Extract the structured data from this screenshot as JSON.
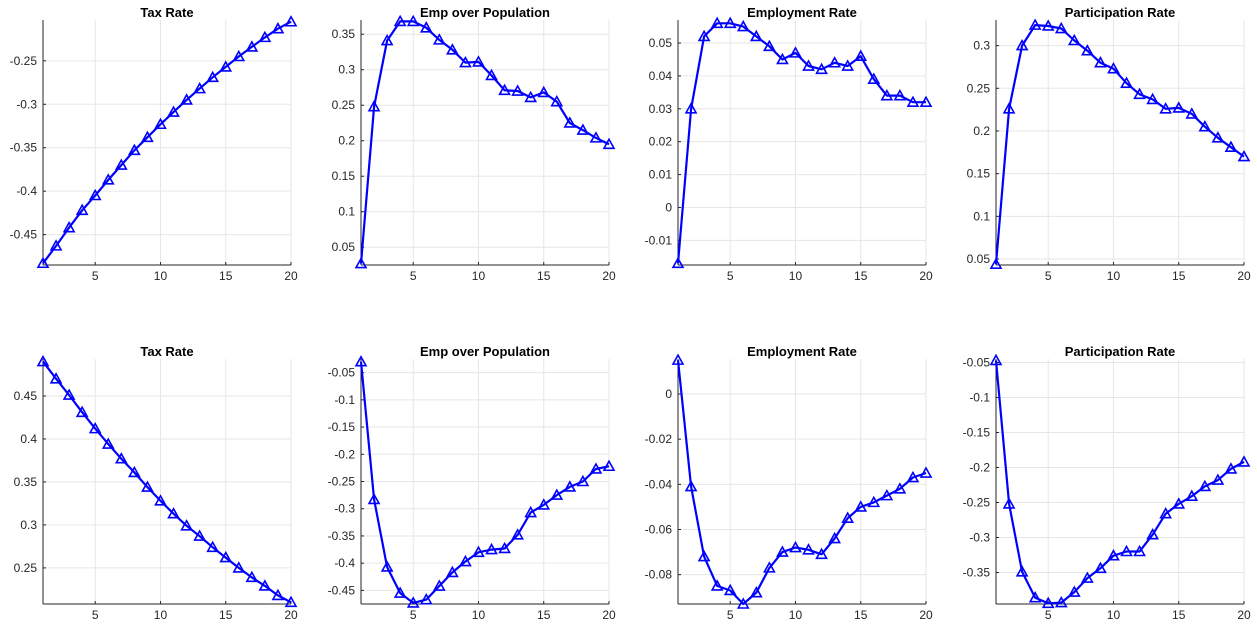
{
  "colors": {
    "line": "#0000ff",
    "grid": "#e6e6e6",
    "axis": "#262626",
    "tick_text": "#262626",
    "title": "#000000"
  },
  "chart_data": [
    {
      "type": "line",
      "marker": "triangle",
      "title": "Tax Rate",
      "xlim": [
        1,
        20
      ],
      "ylim": [
        -0.485,
        -0.203
      ],
      "xticks": [
        5,
        10,
        15,
        20
      ],
      "xtick_labels": [
        "5",
        "10",
        "15",
        "20"
      ],
      "yticks": [
        -0.45,
        -0.4,
        -0.35,
        -0.3,
        -0.25
      ],
      "ytick_labels": [
        "-0.45",
        "-0.4",
        "-0.35",
        "-0.3",
        "-0.25"
      ],
      "grid": true,
      "x": [
        1,
        2,
        3,
        4,
        5,
        6,
        7,
        8,
        9,
        10,
        11,
        12,
        13,
        14,
        15,
        16,
        17,
        18,
        19,
        20
      ],
      "y": [
        -0.483,
        -0.463,
        -0.442,
        -0.422,
        -0.405,
        -0.387,
        -0.37,
        -0.353,
        -0.338,
        -0.323,
        -0.309,
        -0.295,
        -0.282,
        -0.269,
        -0.257,
        -0.245,
        -0.234,
        -0.223,
        -0.213,
        -0.205
      ]
    },
    {
      "type": "line",
      "marker": "triangle",
      "title": "Emp over Population",
      "xlim": [
        1,
        20
      ],
      "ylim": [
        0.025,
        0.37
      ],
      "xticks": [
        5,
        10,
        15,
        20
      ],
      "xtick_labels": [
        "5",
        "10",
        "15",
        "20"
      ],
      "yticks": [
        0.05,
        0.1,
        0.15,
        0.2,
        0.25,
        0.3,
        0.35
      ],
      "ytick_labels": [
        "0.05",
        "0.1",
        "0.15",
        "0.2",
        "0.25",
        "0.3",
        "0.35"
      ],
      "grid": true,
      "x": [
        1,
        2,
        3,
        4,
        5,
        6,
        7,
        8,
        9,
        10,
        11,
        12,
        13,
        14,
        15,
        16,
        17,
        18,
        19,
        20
      ],
      "y": [
        0.027,
        0.248,
        0.341,
        0.368,
        0.368,
        0.359,
        0.342,
        0.328,
        0.31,
        0.311,
        0.292,
        0.271,
        0.27,
        0.261,
        0.268,
        0.255,
        0.225,
        0.215,
        0.204,
        0.195
      ]
    },
    {
      "type": "line",
      "marker": "triangle",
      "title": "Employment Rate",
      "xlim": [
        1,
        20
      ],
      "ylim": [
        -0.0175,
        0.057
      ],
      "xticks": [
        5,
        10,
        15,
        20
      ],
      "xtick_labels": [
        "5",
        "10",
        "15",
        "20"
      ],
      "yticks": [
        -0.01,
        0,
        0.01,
        0.02,
        0.03,
        0.04,
        0.05
      ],
      "ytick_labels": [
        "-0.01",
        "0",
        "0.01",
        "0.02",
        "0.03",
        "0.04",
        "0.05"
      ],
      "grid": true,
      "x": [
        1,
        2,
        3,
        4,
        5,
        6,
        7,
        8,
        9,
        10,
        11,
        12,
        13,
        14,
        15,
        16,
        17,
        18,
        19,
        20
      ],
      "y": [
        -0.017,
        0.03,
        0.052,
        0.056,
        0.056,
        0.055,
        0.052,
        0.049,
        0.045,
        0.047,
        0.043,
        0.042,
        0.044,
        0.043,
        0.046,
        0.039,
        0.034,
        0.034,
        0.032,
        0.032
      ]
    },
    {
      "type": "line",
      "marker": "triangle",
      "title": "Participation Rate",
      "xlim": [
        1,
        20
      ],
      "ylim": [
        0.043,
        0.33
      ],
      "xticks": [
        5,
        10,
        15,
        20
      ],
      "xtick_labels": [
        "5",
        "10",
        "15",
        "20"
      ],
      "yticks": [
        0.05,
        0.1,
        0.15,
        0.2,
        0.25,
        0.3
      ],
      "ytick_labels": [
        "0.05",
        "0.1",
        "0.15",
        "0.2",
        "0.25",
        "0.3"
      ],
      "grid": true,
      "x": [
        1,
        2,
        3,
        4,
        5,
        6,
        7,
        8,
        9,
        10,
        11,
        12,
        13,
        14,
        15,
        16,
        17,
        18,
        19,
        20
      ],
      "y": [
        0.044,
        0.226,
        0.3,
        0.324,
        0.323,
        0.32,
        0.306,
        0.294,
        0.28,
        0.273,
        0.256,
        0.243,
        0.237,
        0.226,
        0.227,
        0.22,
        0.205,
        0.192,
        0.181,
        0.17
      ]
    },
    {
      "type": "line",
      "marker": "triangle",
      "title": "Tax Rate",
      "xlim": [
        1,
        20
      ],
      "ylim": [
        0.208,
        0.493
      ],
      "xticks": [
        5,
        10,
        15,
        20
      ],
      "xtick_labels": [
        "5",
        "10",
        "15",
        "20"
      ],
      "yticks": [
        0.25,
        0.3,
        0.35,
        0.4,
        0.45
      ],
      "ytick_labels": [
        "0.25",
        "0.3",
        "0.35",
        "0.4",
        "0.45"
      ],
      "grid": true,
      "x": [
        1,
        2,
        3,
        4,
        5,
        6,
        7,
        8,
        9,
        10,
        11,
        12,
        13,
        14,
        15,
        16,
        17,
        18,
        19,
        20
      ],
      "y": [
        0.49,
        0.47,
        0.451,
        0.431,
        0.412,
        0.394,
        0.377,
        0.361,
        0.344,
        0.328,
        0.313,
        0.299,
        0.287,
        0.274,
        0.262,
        0.25,
        0.239,
        0.229,
        0.218,
        0.21
      ]
    },
    {
      "type": "line",
      "marker": "triangle",
      "title": "Emp over Population",
      "xlim": [
        1,
        20
      ],
      "ylim": [
        -0.475,
        -0.025
      ],
      "xticks": [
        5,
        10,
        15,
        20
      ],
      "xtick_labels": [
        "5",
        "10",
        "15",
        "20"
      ],
      "yticks": [
        -0.45,
        -0.4,
        -0.35,
        -0.3,
        -0.25,
        -0.2,
        -0.15,
        -0.1,
        -0.05
      ],
      "ytick_labels": [
        "-0.45",
        "-0.4",
        "-0.35",
        "-0.3",
        "-0.25",
        "-0.2",
        "-0.15",
        "-0.1",
        "-0.05"
      ],
      "grid": true,
      "x": [
        1,
        2,
        3,
        4,
        5,
        6,
        7,
        8,
        9,
        10,
        11,
        12,
        13,
        14,
        15,
        16,
        17,
        18,
        19,
        20
      ],
      "y": [
        -0.03,
        -0.283,
        -0.407,
        -0.455,
        -0.473,
        -0.467,
        -0.442,
        -0.417,
        -0.397,
        -0.38,
        -0.375,
        -0.373,
        -0.348,
        -0.307,
        -0.293,
        -0.275,
        -0.26,
        -0.25,
        -0.227,
        -0.222
      ]
    },
    {
      "type": "line",
      "marker": "triangle",
      "title": "Employment Rate",
      "xlim": [
        1,
        20
      ],
      "ylim": [
        -0.093,
        0.0155
      ],
      "xticks": [
        5,
        10,
        15,
        20
      ],
      "xtick_labels": [
        "5",
        "10",
        "15",
        "20"
      ],
      "yticks": [
        -0.08,
        -0.06,
        -0.04,
        -0.02,
        0
      ],
      "ytick_labels": [
        "-0.08",
        "-0.06",
        "-0.04",
        "-0.02",
        "0"
      ],
      "grid": true,
      "x": [
        1,
        2,
        3,
        4,
        5,
        6,
        7,
        8,
        9,
        10,
        11,
        12,
        13,
        14,
        15,
        16,
        17,
        18,
        19,
        20
      ],
      "y": [
        0.015,
        -0.041,
        -0.072,
        -0.085,
        -0.087,
        -0.093,
        -0.088,
        -0.077,
        -0.07,
        -0.068,
        -0.069,
        -0.071,
        -0.064,
        -0.055,
        -0.05,
        -0.048,
        -0.045,
        -0.042,
        -0.037,
        -0.035
      ]
    },
    {
      "type": "line",
      "marker": "triangle",
      "title": "Participation Rate",
      "xlim": [
        1,
        20
      ],
      "ylim": [
        -0.395,
        -0.045
      ],
      "xticks": [
        5,
        10,
        15,
        20
      ],
      "xtick_labels": [
        "5",
        "10",
        "15",
        "20"
      ],
      "yticks": [
        -0.35,
        -0.3,
        -0.25,
        -0.2,
        -0.15,
        -0.1,
        -0.05
      ],
      "ytick_labels": [
        "-0.35",
        "-0.3",
        "-0.25",
        "-0.2",
        "-0.15",
        "-0.1",
        "-0.05"
      ],
      "grid": true,
      "x": [
        1,
        2,
        3,
        4,
        5,
        6,
        7,
        8,
        9,
        10,
        11,
        12,
        13,
        14,
        15,
        16,
        17,
        18,
        19,
        20
      ],
      "y": [
        -0.047,
        -0.252,
        -0.349,
        -0.386,
        -0.394,
        -0.393,
        -0.378,
        -0.358,
        -0.344,
        -0.326,
        -0.32,
        -0.32,
        -0.296,
        -0.266,
        -0.252,
        -0.241,
        -0.227,
        -0.218,
        -0.202,
        -0.192
      ]
    }
  ]
}
